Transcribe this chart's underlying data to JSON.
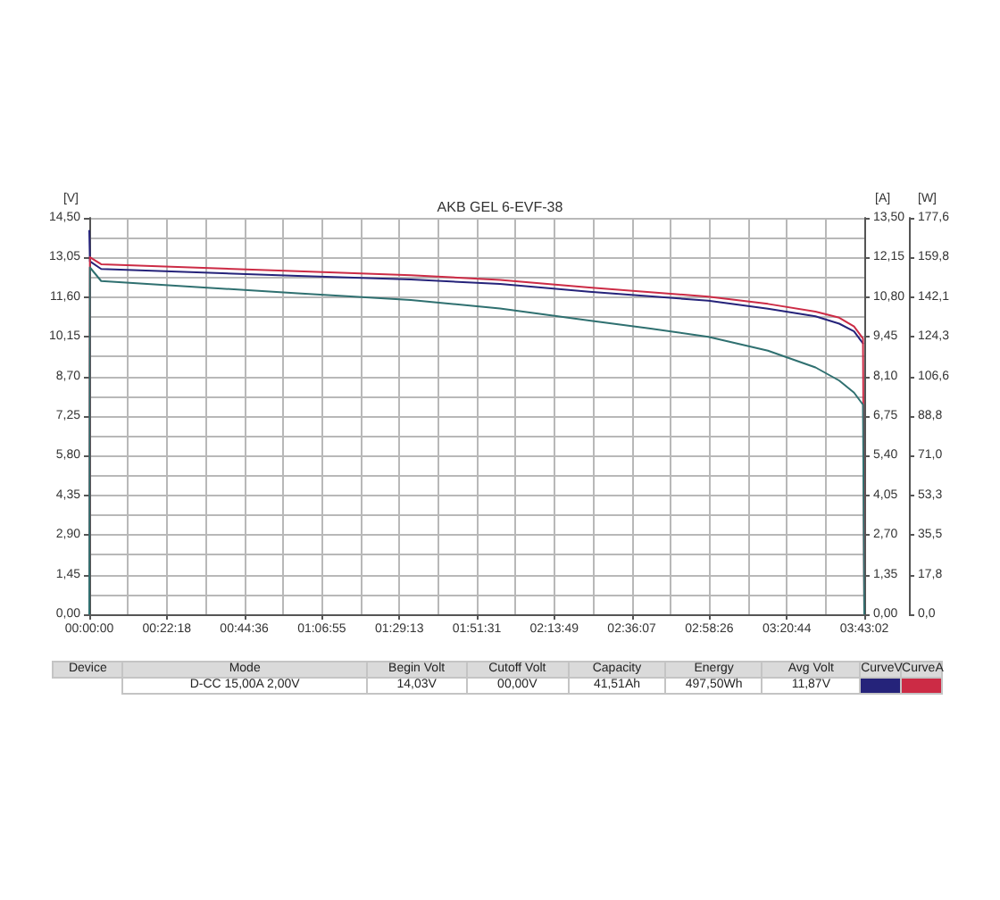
{
  "chart_data": {
    "type": "line",
    "title": "AKB GEL 6-EVF-38",
    "ylabel": "[V]",
    "y2label": "[A]",
    "y3label": "[W]",
    "xlim": [
      0,
      3.7172
    ],
    "xticks": [
      {
        "value": 0,
        "label": "00:00:00"
      },
      {
        "value": 0.37172,
        "label": "00:22:18"
      },
      {
        "value": 0.74344,
        "label": "00:44:36"
      },
      {
        "value": 1.11516,
        "label": "01:06:55"
      },
      {
        "value": 1.48688,
        "label": "01:29:13"
      },
      {
        "value": 1.8586,
        "label": "01:51:31"
      },
      {
        "value": 2.23032,
        "label": "02:13:49"
      },
      {
        "value": 2.60204,
        "label": "02:36:07"
      },
      {
        "value": 2.97376,
        "label": "02:58:26"
      },
      {
        "value": 3.34548,
        "label": "03:20:44"
      },
      {
        "value": 3.7172,
        "label": "03:43:02"
      }
    ],
    "ylim": [
      0,
      14.5
    ],
    "yticks": [
      {
        "value": 0,
        "label": "0,00"
      },
      {
        "value": 1.45,
        "label": "1,45"
      },
      {
        "value": 2.9,
        "label": "2,90"
      },
      {
        "value": 4.35,
        "label": "4,35"
      },
      {
        "value": 5.8,
        "label": "5,80"
      },
      {
        "value": 7.25,
        "label": "7,25"
      },
      {
        "value": 8.7,
        "label": "8,70"
      },
      {
        "value": 10.15,
        "label": "10,15"
      },
      {
        "value": 11.6,
        "label": "11,60"
      },
      {
        "value": 13.05,
        "label": "13,05"
      },
      {
        "value": 14.5,
        "label": "14,50"
      }
    ],
    "y2lim": [
      0,
      13.5
    ],
    "y2ticks": [
      {
        "value": 0,
        "label": "0,00"
      },
      {
        "value": 1.35,
        "label": "1,35"
      },
      {
        "value": 2.7,
        "label": "2,70"
      },
      {
        "value": 4.05,
        "label": "4,05"
      },
      {
        "value": 5.4,
        "label": "5,40"
      },
      {
        "value": 6.75,
        "label": "6,75"
      },
      {
        "value": 8.1,
        "label": "8,10"
      },
      {
        "value": 9.45,
        "label": "9,45"
      },
      {
        "value": 10.8,
        "label": "10,80"
      },
      {
        "value": 12.15,
        "label": "12,15"
      },
      {
        "value": 13.5,
        "label": "13,50"
      }
    ],
    "y3lim": [
      0,
      177.6
    ],
    "y3ticks": [
      {
        "value": 0,
        "label": "0,0"
      },
      {
        "value": 17.76,
        "label": "17,8"
      },
      {
        "value": 35.52,
        "label": "35,5"
      },
      {
        "value": 53.28,
        "label": "53,3"
      },
      {
        "value": 71.04,
        "label": "71,0"
      },
      {
        "value": 88.8,
        "label": "88,8"
      },
      {
        "value": 106.56,
        "label": "106,6"
      },
      {
        "value": 124.32,
        "label": "124,3"
      },
      {
        "value": 142.08,
        "label": "142,1"
      },
      {
        "value": 159.84,
        "label": "159,8"
      },
      {
        "value": 177.6,
        "label": "177,6"
      }
    ],
    "series": [
      {
        "name": "CurveV",
        "color": "#25237a",
        "axis": "y",
        "x": [
          0,
          0.003,
          0.057,
          1.0,
          1.542,
          1.97,
          2.398,
          2.969,
          3.255,
          3.483,
          3.597,
          3.668,
          3.711
        ],
        "values": [
          14.03,
          12.91,
          12.63,
          12.38,
          12.25,
          12.08,
          11.8,
          11.47,
          11.18,
          10.9,
          10.63,
          10.35,
          9.91
        ]
      },
      {
        "name": "CurveA",
        "color": "#cc2b45",
        "axis": "y2",
        "x": [
          0,
          0.003,
          0.057,
          1.0,
          1.542,
          1.97,
          2.398,
          2.969,
          3.255,
          3.483,
          3.597,
          3.668,
          3.711,
          3.7172
        ],
        "values": [
          0,
          12.16,
          11.92,
          11.68,
          11.55,
          11.39,
          11.13,
          10.82,
          10.57,
          10.31,
          10.1,
          9.8,
          9.39,
          0
        ]
      },
      {
        "color": "#2f7070",
        "axis": "y3",
        "x": [
          0,
          0.003,
          0.057,
          1.0,
          1.542,
          1.97,
          2.398,
          2.684,
          2.969,
          3.255,
          3.483,
          3.597,
          3.668,
          3.711,
          3.7172
        ],
        "values": [
          0,
          155.4,
          149.3,
          143.8,
          140.8,
          137.0,
          131.6,
          128.1,
          124.3,
          118.1,
          110.6,
          104.7,
          99.3,
          93.9,
          0
        ]
      }
    ],
    "grid": true,
    "legend": "bottom",
    "annotations": [
      "Device",
      "Mode",
      "Begin Volt",
      "Cutoff Volt",
      "Capacity",
      "Energy",
      "Avg Volt",
      "D-CC 15,00A 2,00V",
      "14,03V",
      "00,00V",
      "41,51Ah",
      "497,50Wh",
      "11,87V"
    ]
  }
}
